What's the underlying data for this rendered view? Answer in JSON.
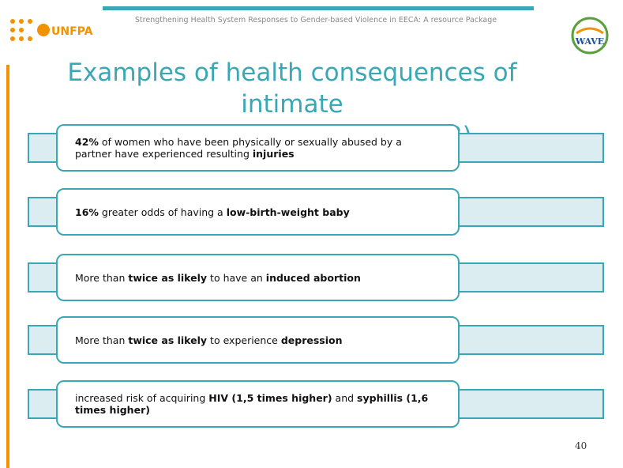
{
  "header": {
    "text": "Strengthening Health System Responses to Gender-based Violence in EECA: A resource Package"
  },
  "logos": {
    "left": "UNFPA",
    "right": "WAVE"
  },
  "title": {
    "line1": "Examples of health consequences of intimate",
    "line2": "partner violence (WHO 2013)"
  },
  "items": [
    [
      {
        "text": "42%",
        "bold": true
      },
      {
        "text": " of women who have been physically or sexually abused by a partner have experienced resulting ",
        "bold": false
      },
      {
        "text": "injuries",
        "bold": true
      }
    ],
    [
      {
        "text": "16%",
        "bold": true
      },
      {
        "text": " greater odds of having a ",
        "bold": false
      },
      {
        "text": "low-birth-weight baby",
        "bold": true
      }
    ],
    [
      {
        "text": "More than ",
        "bold": false
      },
      {
        "text": "twice as likely",
        "bold": true
      },
      {
        "text": " to have an ",
        "bold": false
      },
      {
        "text": "induced abortion",
        "bold": true
      }
    ],
    [
      {
        "text": "More than ",
        "bold": false
      },
      {
        "text": "twice as likely",
        "bold": true
      },
      {
        "text": " to experience ",
        "bold": false
      },
      {
        "text": "depression",
        "bold": true
      }
    ],
    [
      {
        "text": "increased risk of acquiring ",
        "bold": false
      },
      {
        "text": "HIV (1,5 times higher)",
        "bold": true
      },
      {
        "text": " and ",
        "bold": false
      },
      {
        "text": "syphillis (1,6 times higher)",
        "bold": true
      }
    ]
  ],
  "page_number": "40"
}
